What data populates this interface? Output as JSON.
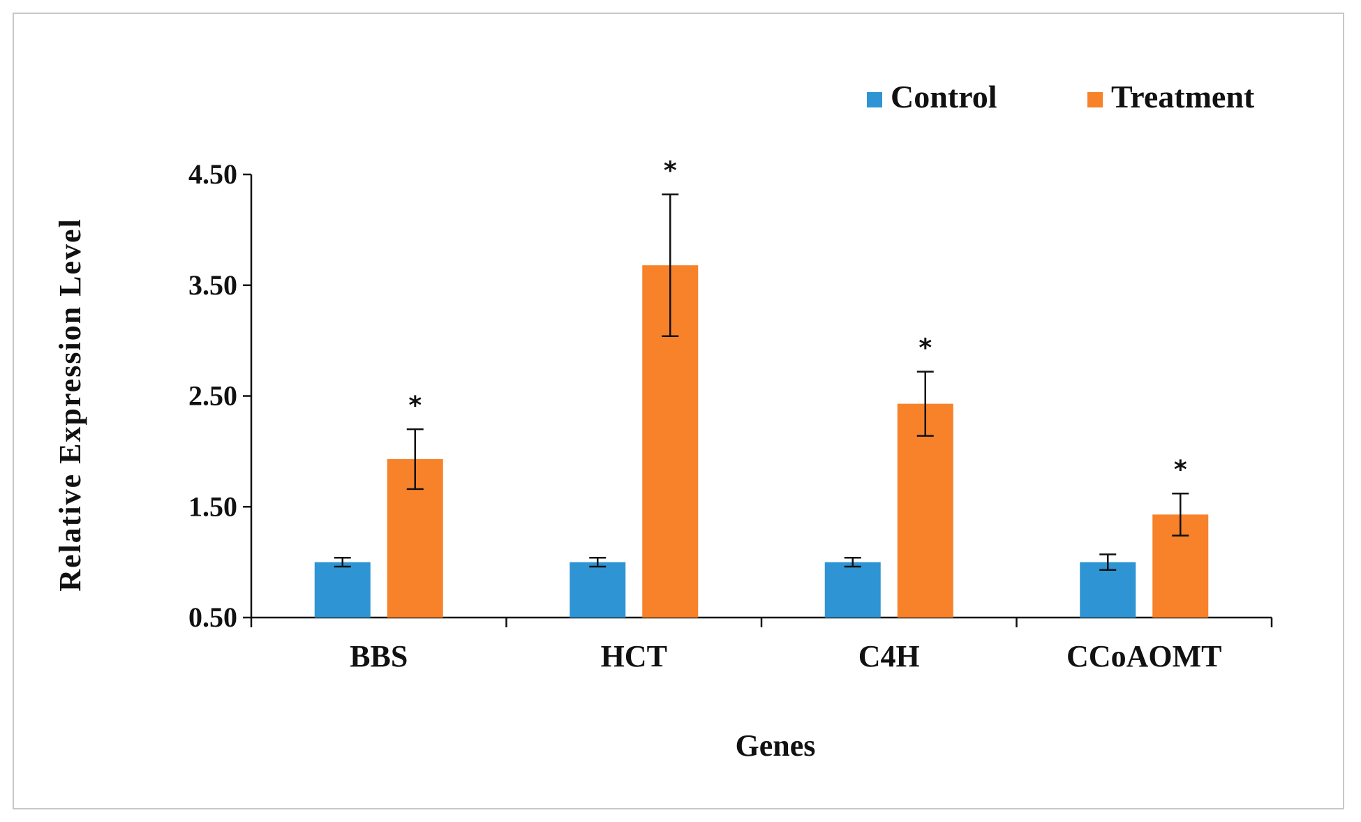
{
  "chart_data": {
    "type": "bar",
    "title": "",
    "xlabel": "Genes",
    "ylabel": "Relative Expression Level",
    "ylim": [
      0.5,
      4.5
    ],
    "yticks": [
      "0.50",
      "1.50",
      "2.50",
      "3.50",
      "4.50"
    ],
    "ytick_values": [
      0.5,
      1.5,
      2.5,
      3.5,
      4.5
    ],
    "categories": [
      "BBS",
      "HCT",
      "C4H",
      "CCoAOMT"
    ],
    "series": [
      {
        "name": "Control",
        "color": "#2e94d4",
        "values": [
          1.0,
          1.0,
          1.0,
          1.0
        ],
        "errors": [
          0.04,
          0.04,
          0.04,
          0.07
        ]
      },
      {
        "name": "Treatment",
        "color": "#f7822a",
        "values": [
          1.93,
          3.68,
          2.43,
          1.43
        ],
        "errors": [
          0.27,
          0.64,
          0.29,
          0.19
        ]
      }
    ],
    "significance": {
      "series": "Treatment",
      "marker": "*",
      "flags": [
        true,
        true,
        true,
        true
      ]
    },
    "legend": {
      "placement": "top-right",
      "items": [
        "Control",
        "Treatment"
      ]
    },
    "grid": false
  }
}
